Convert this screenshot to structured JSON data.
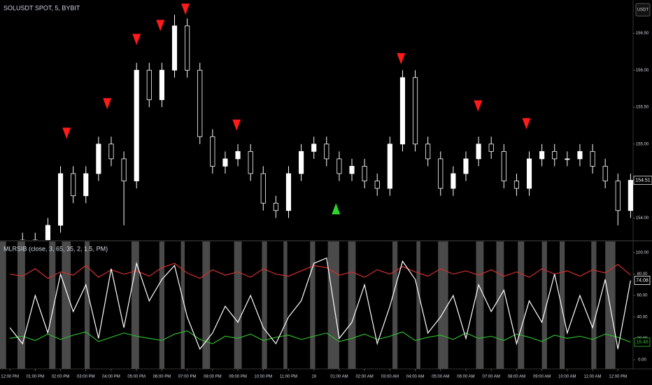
{
  "toolbar": {
    "currency": "USDT"
  },
  "chart_data": [
    {
      "type": "candlestick",
      "title": "SOLUSDT SPOT, 5, BYBIT",
      "x": [
        0,
        0.5,
        1,
        1.5,
        2,
        2.5,
        3,
        3.5,
        4,
        4.5,
        5,
        5.5,
        6,
        6.5,
        7,
        7.5,
        8,
        8.5,
        9,
        9.5,
        10,
        10.5,
        11,
        11.5,
        12,
        12.5,
        13,
        13.5,
        14,
        14.5,
        15,
        15.5,
        16,
        16.5,
        17,
        17.5,
        18,
        18.5,
        19,
        19.5,
        20,
        20.5,
        21,
        21.5,
        22,
        22.5,
        23,
        23.5,
        24,
        24.5
      ],
      "open": [
        153.5,
        153.6,
        153.7,
        153.6,
        153.9,
        154.6,
        154.3,
        154.6,
        155.0,
        154.8,
        154.5,
        156.0,
        155.6,
        156.0,
        156.6,
        156.0,
        155.1,
        154.7,
        154.8,
        154.9,
        154.6,
        154.2,
        154.1,
        154.6,
        154.9,
        155.0,
        154.8,
        154.6,
        154.7,
        154.5,
        154.4,
        155.0,
        155.9,
        155.0,
        154.8,
        154.4,
        154.6,
        154.8,
        155.0,
        154.9,
        154.5,
        154.4,
        154.8,
        154.9,
        154.8,
        154.8,
        154.9,
        154.7,
        154.5,
        154.1
      ],
      "high": [
        153.7,
        153.8,
        153.8,
        154.0,
        154.7,
        154.7,
        154.7,
        155.1,
        155.1,
        154.9,
        156.1,
        156.1,
        156.1,
        156.75,
        156.7,
        156.1,
        155.2,
        154.9,
        155.0,
        155.0,
        154.7,
        154.3,
        154.7,
        155.0,
        155.1,
        155.1,
        154.9,
        154.8,
        154.8,
        154.6,
        155.1,
        156.0,
        156.0,
        155.1,
        154.9,
        154.7,
        154.9,
        155.1,
        155.1,
        155.0,
        154.6,
        154.9,
        155.0,
        155.0,
        154.9,
        155.0,
        155.0,
        154.8,
        154.6,
        154.6
      ],
      "low": [
        153.4,
        153.5,
        153.5,
        153.5,
        153.8,
        154.2,
        154.2,
        154.5,
        154.7,
        153.9,
        154.4,
        155.5,
        155.5,
        155.9,
        155.9,
        155.0,
        154.6,
        154.6,
        154.7,
        154.5,
        154.1,
        154.0,
        154.0,
        154.5,
        154.8,
        154.7,
        154.5,
        154.5,
        154.4,
        154.3,
        154.3,
        154.9,
        154.9,
        154.7,
        154.3,
        154.3,
        154.5,
        154.7,
        154.8,
        154.4,
        154.3,
        154.3,
        154.7,
        154.7,
        154.7,
        154.7,
        154.6,
        154.4,
        153.9,
        154.0
      ],
      "close": [
        153.6,
        153.7,
        153.6,
        153.9,
        154.6,
        154.3,
        154.6,
        155.0,
        154.8,
        154.5,
        156.0,
        155.6,
        156.0,
        156.6,
        156.0,
        155.1,
        154.7,
        154.8,
        154.9,
        154.6,
        154.2,
        154.1,
        154.6,
        154.9,
        155.0,
        154.8,
        154.6,
        154.7,
        154.5,
        154.4,
        155.0,
        155.9,
        155.0,
        154.8,
        154.4,
        154.6,
        154.8,
        155.0,
        154.9,
        154.5,
        154.4,
        154.8,
        154.9,
        154.8,
        154.8,
        154.9,
        154.7,
        154.5,
        154.1,
        154.51
      ],
      "color": "#ffffff",
      "sell_signals": {
        "x": [
          2.24,
          3.84,
          5.0,
          5.94,
          6.93,
          8.95,
          15.44,
          18.48,
          20.39
        ],
        "y": [
          155.07,
          155.47,
          156.34,
          156.53,
          156.75,
          155.18,
          156.08,
          155.44,
          155.2
        ],
        "color": "#ff1a1a"
      },
      "buy_signals": {
        "x": [
          12.87
        ],
        "y": [
          154.2
        ],
        "color": "#2bd62b"
      },
      "xlim": [
        -0.39,
        24.6
      ],
      "ylim": [
        153.7,
        156.95
      ],
      "yticks": [
        {
          "value": 154,
          "label": "154.00"
        },
        {
          "value": 154.5,
          "label": "154.50"
        },
        {
          "value": 155,
          "label": "155.00"
        },
        {
          "value": 155.5,
          "label": "155.50"
        },
        {
          "value": 156,
          "label": "156.00"
        },
        {
          "value": 156.5,
          "label": "156.50"
        }
      ]
    },
    {
      "type": "line",
      "title": "MLRSIB (close, 3, 65, 35, 2, 1.5, PM)",
      "x": [
        0,
        0.5,
        1,
        1.5,
        2,
        2.5,
        3,
        3.5,
        4,
        4.5,
        5,
        5.5,
        6,
        6.5,
        7,
        7.5,
        8,
        8.5,
        9,
        9.5,
        10,
        10.5,
        11,
        11.5,
        12,
        12.5,
        13,
        13.5,
        14,
        14.5,
        15,
        15.5,
        16,
        16.5,
        17,
        17.5,
        18,
        18.5,
        19,
        19.5,
        20,
        20.5,
        21,
        21.5,
        22,
        22.5,
        23,
        23.5,
        24,
        24.5
      ],
      "series": [
        {
          "color": "#d32f2f",
          "values": [
            80,
            78,
            85,
            76,
            82,
            79,
            88,
            77,
            84,
            80,
            83,
            78,
            86,
            90,
            81,
            76,
            84,
            79,
            82,
            77,
            85,
            80,
            78,
            83,
            88,
            86,
            79,
            82,
            77,
            84,
            80,
            87,
            82,
            78,
            85,
            80,
            83,
            79,
            84,
            78,
            82,
            77,
            85,
            80,
            83,
            78,
            84,
            81,
            89,
            79
          ]
        },
        {
          "color": "#2db82d",
          "values": [
            20,
            22,
            18,
            24,
            19,
            23,
            26,
            17,
            21,
            25,
            22,
            20,
            18,
            24,
            27,
            19,
            15,
            22,
            20,
            24,
            18,
            21,
            23,
            19,
            22,
            25,
            17,
            20,
            24,
            19,
            22,
            26,
            18,
            21,
            23,
            19,
            25,
            20,
            22,
            18,
            24,
            21,
            17,
            23,
            20,
            22,
            19,
            24,
            21,
            16.46
          ]
        },
        {
          "color": "#ffffff",
          "values": [
            30,
            15,
            60,
            25,
            80,
            45,
            70,
            20,
            85,
            30,
            90,
            55,
            75,
            88,
            40,
            10,
            25,
            50,
            35,
            60,
            30,
            15,
            40,
            55,
            90,
            95,
            20,
            35,
            70,
            15,
            50,
            92,
            75,
            25,
            40,
            60,
            20,
            70,
            45,
            65,
            15,
            55,
            35,
            80,
            25,
            60,
            30,
            75,
            10,
            74.08
          ]
        }
      ],
      "shaded_spans": [
        [
          -0.39,
          -0.15
        ],
        [
          0.3,
          0.6
        ],
        [
          1.55,
          1.8
        ],
        [
          2.05,
          2.4
        ],
        [
          2.95,
          3.15
        ],
        [
          4.8,
          5.1
        ],
        [
          5.9,
          6.1
        ],
        [
          6.75,
          6.9
        ],
        [
          7.6,
          7.9
        ],
        [
          8.85,
          9.15
        ],
        [
          9.95,
          10.15
        ],
        [
          10.8,
          10.95
        ],
        [
          11.85,
          12.05
        ],
        [
          12.55,
          13.0
        ],
        [
          13.35,
          13.65
        ],
        [
          15.1,
          15.3
        ],
        [
          16.05,
          16.2
        ],
        [
          16.9,
          17.3
        ],
        [
          18.4,
          18.7
        ],
        [
          19.2,
          19.5
        ],
        [
          20.05,
          20.3
        ],
        [
          21.0,
          21.2
        ],
        [
          21.7,
          21.9
        ],
        [
          22.95,
          23.15
        ],
        [
          23.5,
          23.9
        ]
      ],
      "shade_color": "#4a4a4a",
      "xlim": [
        -0.39,
        24.6
      ],
      "ylim": [
        -8.5,
        110.4
      ],
      "yticks": [
        {
          "value": 0,
          "label": "0.00"
        },
        {
          "value": 20,
          "label": "20.00"
        },
        {
          "value": 40,
          "label": "40.00"
        },
        {
          "value": 60,
          "label": "60.00"
        },
        {
          "value": 80,
          "label": "80.00"
        },
        {
          "value": 100,
          "label": "100.00"
        }
      ],
      "xticks": [
        {
          "value": 0,
          "label": "12:00 PM"
        },
        {
          "value": 1,
          "label": "01:00 PM"
        },
        {
          "value": 2,
          "label": "02:00 PM"
        },
        {
          "value": 3,
          "label": "03:00 PM"
        },
        {
          "value": 4,
          "label": "04:00 PM"
        },
        {
          "value": 5,
          "label": "05:00 PM"
        },
        {
          "value": 6,
          "label": "06:00 PM"
        },
        {
          "value": 7,
          "label": "07:00 PM"
        },
        {
          "value": 8,
          "label": "08:00 PM"
        },
        {
          "value": 9,
          "label": "09:00 PM"
        },
        {
          "value": 10,
          "label": "10:00 PM"
        },
        {
          "value": 11,
          "label": "11:00 PM"
        },
        {
          "value": 12,
          "label": "19"
        },
        {
          "value": 13,
          "label": "01:00 AM"
        },
        {
          "value": 14,
          "label": "02:00 AM"
        },
        {
          "value": 15,
          "label": "03:00 AM"
        },
        {
          "value": 16,
          "label": "04:00 AM"
        },
        {
          "value": 17,
          "label": "05:00 AM"
        },
        {
          "value": 18,
          "label": "06:00 AM"
        },
        {
          "value": 19,
          "label": "07:00 AM"
        },
        {
          "value": 20,
          "label": "08:00 AM"
        },
        {
          "value": 21,
          "label": "09:00 AM"
        },
        {
          "value": 22,
          "label": "10:00 AM"
        },
        {
          "value": 23,
          "label": "11:00 AM"
        },
        {
          "value": 24,
          "label": "12:00 PM"
        }
      ]
    }
  ]
}
